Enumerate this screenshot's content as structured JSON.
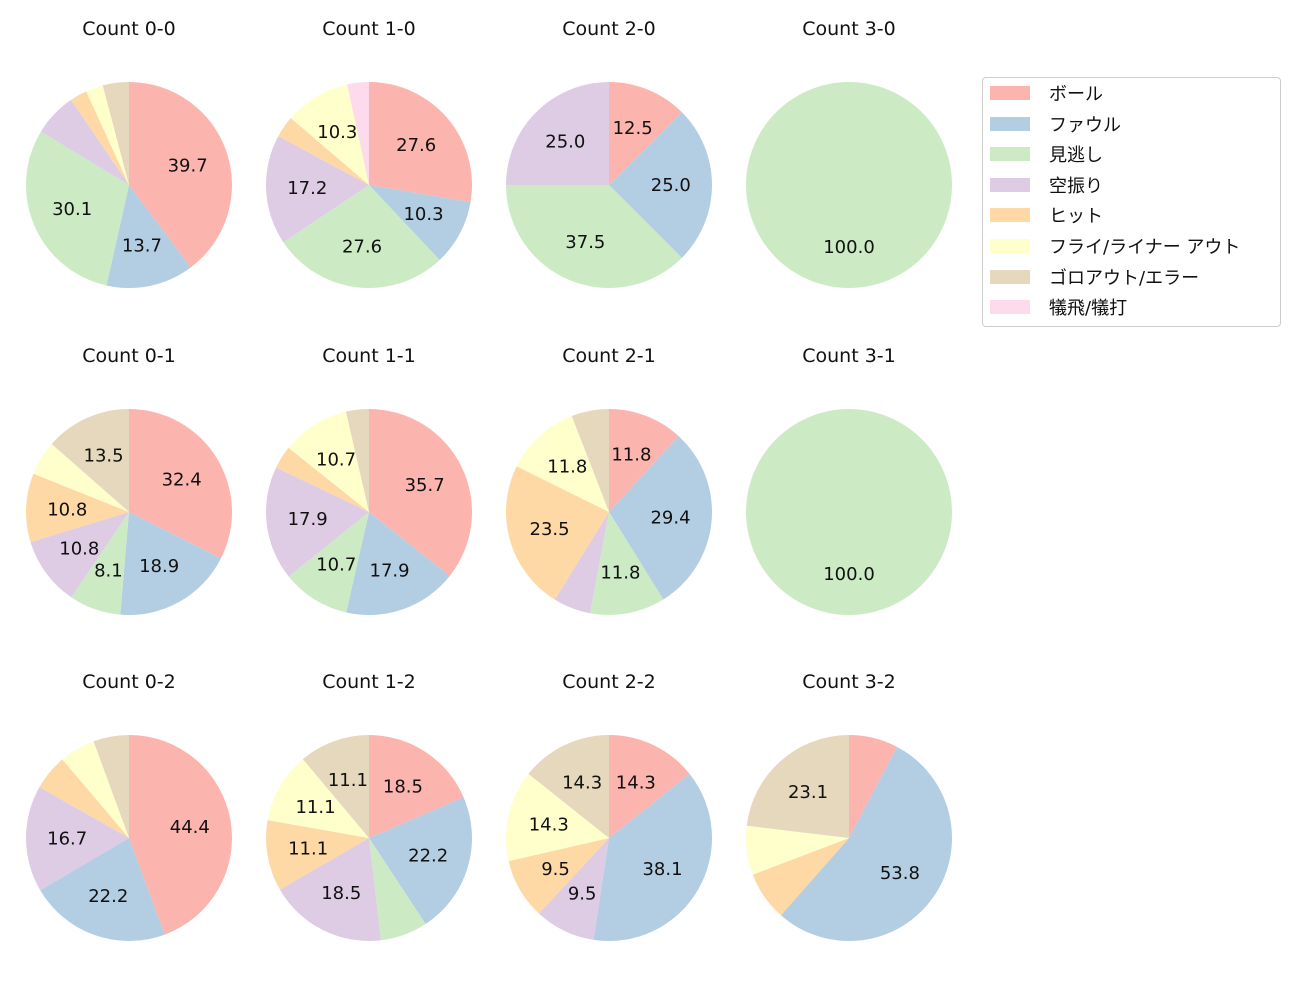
{
  "chart_data": {
    "type": "pie",
    "legend": {
      "placement": "top-right",
      "entries": [
        "ボール",
        "ファウル",
        "見逃し",
        "空振り",
        "ヒット",
        "フライ/ライナー アウト",
        "ゴロアウト/エラー",
        "犠飛/犠打"
      ]
    },
    "colors": [
      "#fbb4ae",
      "#b3cde3",
      "#ccebc5",
      "#decbe4",
      "#fed9a6",
      "#ffffcc",
      "#e5d8bd",
      "#fddaec"
    ],
    "start_angle": 90,
    "direction": "clockwise",
    "charts": [
      {
        "title": "Count 0-0",
        "values": [
          39.7,
          13.7,
          30.1,
          6.8,
          2.7,
          2.7,
          4.1,
          0
        ]
      },
      {
        "title": "Count 1-0",
        "values": [
          27.6,
          10.3,
          27.6,
          17.2,
          3.4,
          10.3,
          0,
          3.4
        ]
      },
      {
        "title": "Count 2-0",
        "values": [
          12.5,
          25.0,
          37.5,
          25.0,
          0,
          0,
          0,
          0
        ]
      },
      {
        "title": "Count 3-0",
        "values": [
          0,
          0,
          100.0,
          0,
          0,
          0,
          0,
          0
        ]
      },
      {
        "title": "Count 0-1",
        "values": [
          32.4,
          18.9,
          8.1,
          10.8,
          10.8,
          5.4,
          13.5,
          0
        ]
      },
      {
        "title": "Count 1-1",
        "values": [
          35.7,
          17.9,
          10.7,
          17.9,
          3.6,
          10.7,
          3.6,
          0
        ]
      },
      {
        "title": "Count 2-1",
        "values": [
          11.8,
          29.4,
          11.8,
          5.9,
          23.5,
          11.8,
          5.9,
          0
        ]
      },
      {
        "title": "Count 3-1",
        "values": [
          0,
          0,
          100.0,
          0,
          0,
          0,
          0,
          0
        ]
      },
      {
        "title": "Count 0-2",
        "values": [
          44.4,
          22.2,
          0,
          16.7,
          5.6,
          5.6,
          5.6,
          0
        ]
      },
      {
        "title": "Count 1-2",
        "values": [
          18.5,
          22.2,
          7.4,
          18.5,
          11.1,
          11.1,
          11.1,
          0
        ]
      },
      {
        "title": "Count 2-2",
        "values": [
          14.3,
          38.1,
          0,
          9.5,
          9.5,
          14.3,
          14.3,
          0
        ]
      },
      {
        "title": "Count 3-2",
        "values": [
          7.7,
          53.8,
          0,
          0,
          7.7,
          7.7,
          23.1,
          0
        ]
      }
    ]
  }
}
